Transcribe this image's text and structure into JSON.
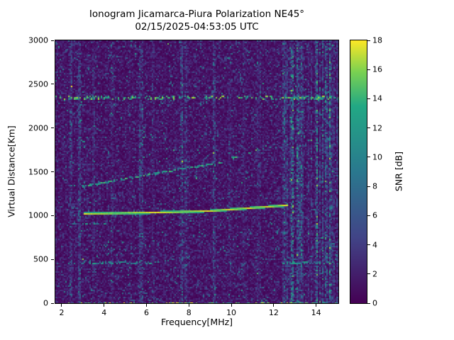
{
  "chart_data": {
    "type": "heatmap",
    "title": "Ionogram Jicamarca-Piura Polarization NE45°",
    "subtitle": "02/15/2025-04:53:05 UTC",
    "xlabel": "Frequency[MHz]",
    "ylabel": "Virtual Distance[Km]",
    "xlim": [
      1.7,
      15.05
    ],
    "ylim": [
      0,
      3000
    ],
    "xticks": [
      2,
      4,
      6,
      8,
      10,
      12,
      14
    ],
    "yticks": [
      0,
      500,
      1000,
      1500,
      2000,
      2500,
      3000
    ],
    "grid": false,
    "colorbar": {
      "label": "SNR [dB]",
      "min": 0,
      "max": 18,
      "ticks": [
        0,
        2,
        4,
        6,
        8,
        10,
        12,
        14,
        16,
        18
      ],
      "colormap": "viridis",
      "position": "right"
    },
    "noise_floor_db": 2,
    "seed": 20250215,
    "features": {
      "f_region_echo_trace": {
        "points_mhz_km": [
          [
            3.05,
            1020
          ],
          [
            5,
            1028
          ],
          [
            7,
            1038
          ],
          [
            9,
            1052
          ],
          [
            10.5,
            1078
          ],
          [
            11.6,
            1098
          ],
          [
            12.65,
            1118
          ]
        ],
        "peak_snr_db": 18
      },
      "oblique_spread_trace": {
        "points_mhz_km": [
          [
            2.9,
            1330
          ],
          [
            5,
            1420
          ],
          [
            7,
            1505
          ],
          [
            9.5,
            1605
          ],
          [
            11.7,
            1790
          ]
        ],
        "peak_snr_db": 14
      },
      "multipath_band_km": 2345,
      "e_region_segments": [
        {
          "km": 900,
          "mhz": [
            2.3,
            4.3
          ]
        },
        {
          "km": 460,
          "mhz": [
            2.7,
            6.6
          ]
        },
        {
          "km": 460,
          "mhz": [
            12.4,
            15.05
          ]
        }
      ],
      "ground_echo_segments_mhz": [
        [
          7.1,
          8.1
        ],
        [
          12.6,
          13.1
        ]
      ],
      "rfi_stripes": [
        {
          "mhz": 2.45,
          "strength": 3
        },
        {
          "mhz": 2.85,
          "strength": 4
        },
        {
          "mhz": 3.5,
          "strength": 1.5
        },
        {
          "mhz": 4.35,
          "strength": 1.5
        },
        {
          "mhz": 5.75,
          "strength": 3.5
        },
        {
          "mhz": 6.3,
          "strength": 1.2
        },
        {
          "mhz": 7.65,
          "strength": 4
        },
        {
          "mhz": 7.85,
          "strength": 2.5
        },
        {
          "mhz": 9.2,
          "strength": 3
        },
        {
          "mhz": 9.95,
          "strength": 1.5
        },
        {
          "mhz": 10.6,
          "strength": 1.2
        },
        {
          "mhz": 11.3,
          "strength": 1.5
        },
        {
          "mhz": 12.45,
          "strength": 4
        },
        {
          "mhz": 12.6,
          "strength": 3
        }
      ],
      "wideband_interference_above_mhz": 12.55
    }
  }
}
